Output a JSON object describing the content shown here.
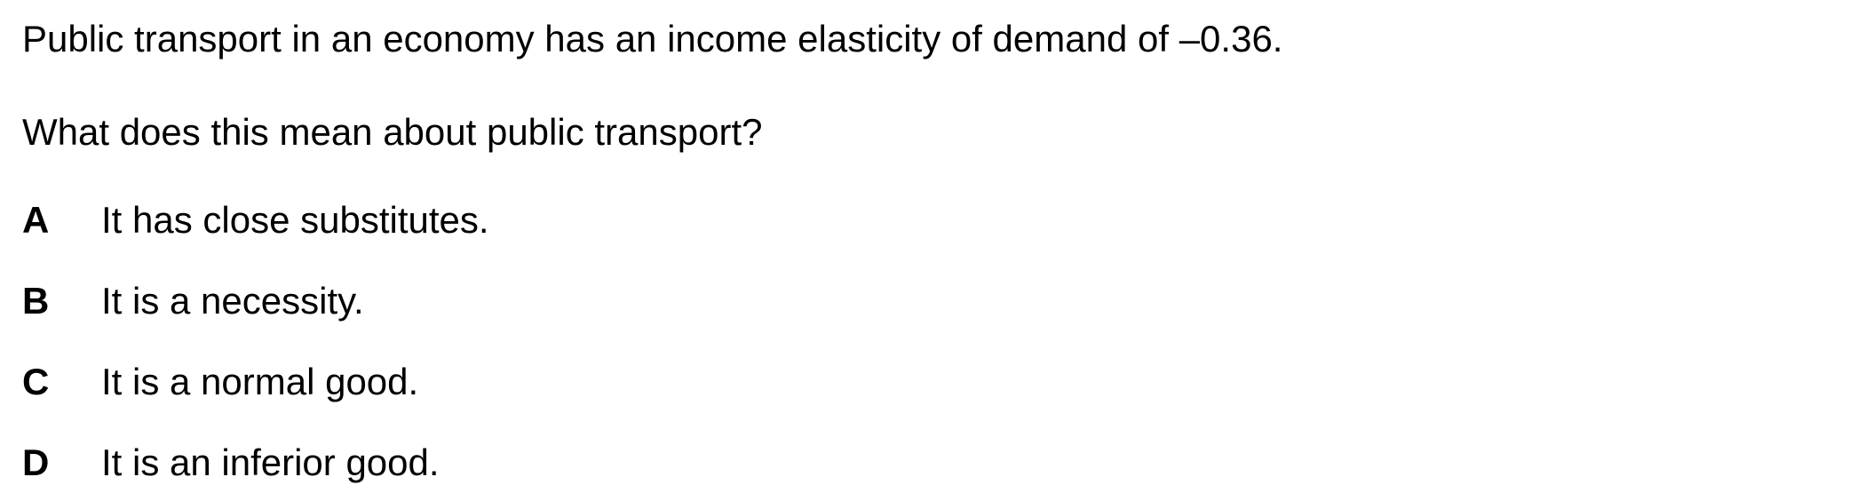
{
  "question": {
    "stem": "Public transport in an economy has an income elasticity of demand of –0.36.",
    "prompt": "What does this mean about public transport?",
    "options": [
      {
        "letter": "A",
        "text": "It has close substitutes."
      },
      {
        "letter": "B",
        "text": "It is a necessity."
      },
      {
        "letter": "C",
        "text": "It is a normal good."
      },
      {
        "letter": "D",
        "text": "It is an inferior good."
      }
    ]
  }
}
